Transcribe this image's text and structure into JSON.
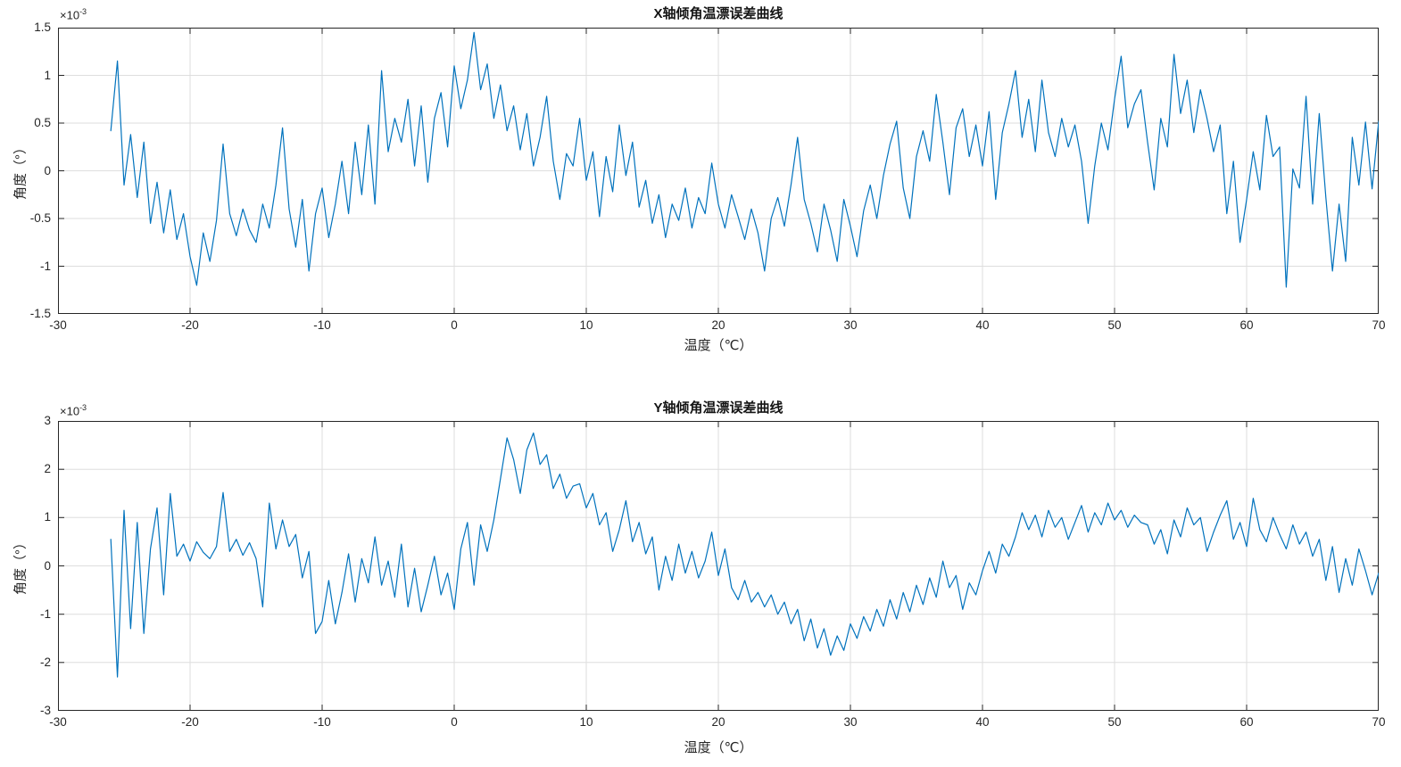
{
  "figure": {
    "background": "#ffffff"
  },
  "colors": {
    "line": "#0072BD",
    "grid": "#dedede",
    "axis_box": "#262626",
    "tick_text": "#262626",
    "title_text": "#141414"
  },
  "chart_data": [
    {
      "type": "line",
      "title": "X轴倾角温漂误差曲线",
      "xlabel": "温度（℃）",
      "ylabel": "角度（°）",
      "y_scale_base": "×10",
      "y_scale_exp": "-3",
      "values_unit": "1e-3 degrees",
      "xlim": [
        -30,
        70
      ],
      "ylim": [
        -1.5,
        1.5
      ],
      "x_ticks": [
        -30,
        -20,
        -10,
        0,
        10,
        20,
        30,
        40,
        50,
        60,
        70
      ],
      "y_ticks": [
        -1.5,
        -1,
        -0.5,
        0,
        0.5,
        1,
        1.5
      ],
      "grid": true,
      "legend": null,
      "x": [
        -26,
        -25.5,
        -25,
        -24.5,
        -24,
        -23.5,
        -23,
        -22.5,
        -22,
        -21.5,
        -21,
        -20.5,
        -20,
        -19.5,
        -19,
        -18.5,
        -18,
        -17.5,
        -17,
        -16.5,
        -16,
        -15.5,
        -15,
        -14.5,
        -14,
        -13.5,
        -13,
        -12.5,
        -12,
        -11.5,
        -11,
        -10.5,
        -10,
        -9.5,
        -9,
        -8.5,
        -8,
        -7.5,
        -7,
        -6.5,
        -6,
        -5.5,
        -5,
        -4.5,
        -4,
        -3.5,
        -3,
        -2.5,
        -2,
        -1.5,
        -1,
        -0.5,
        0,
        0.5,
        1,
        1.5,
        2,
        2.5,
        3,
        3.5,
        4,
        4.5,
        5,
        5.5,
        6,
        6.5,
        7,
        7.5,
        8,
        8.5,
        9,
        9.5,
        10,
        10.5,
        11,
        11.5,
        12,
        12.5,
        13,
        13.5,
        14,
        14.5,
        15,
        15.5,
        16,
        16.5,
        17,
        17.5,
        18,
        18.5,
        19,
        19.5,
        20,
        20.5,
        21,
        21.5,
        22,
        22.5,
        23,
        23.5,
        24,
        24.5,
        25,
        25.5,
        26,
        26.5,
        27,
        27.5,
        28,
        28.5,
        29,
        29.5,
        30,
        30.5,
        31,
        31.5,
        32,
        32.5,
        33,
        33.5,
        34,
        34.5,
        35,
        35.5,
        36,
        36.5,
        37,
        37.5,
        38,
        38.5,
        39,
        39.5,
        40,
        40.5,
        41,
        41.5,
        42,
        42.5,
        43,
        43.5,
        44,
        44.5,
        45,
        45.5,
        46,
        46.5,
        47,
        47.5,
        48,
        48.5,
        49,
        49.5,
        50,
        50.5,
        51,
        51.5,
        52,
        52.5,
        53,
        53.5,
        54,
        54.5,
        55,
        55.5,
        56,
        56.5,
        57,
        57.5,
        58,
        58.5,
        59,
        59.5,
        60,
        60.5,
        61,
        61.5,
        62,
        62.5,
        63,
        63.5,
        64,
        64.5,
        65,
        65.5,
        66,
        66.5,
        67,
        67.5,
        68,
        68.5,
        69,
        69.5,
        70
      ],
      "y": [
        0.42,
        1.15,
        -0.15,
        0.38,
        -0.28,
        0.3,
        -0.55,
        -0.12,
        -0.65,
        -0.2,
        -0.72,
        -0.45,
        -0.9,
        -1.2,
        -0.65,
        -0.95,
        -0.52,
        0.28,
        -0.45,
        -0.68,
        -0.4,
        -0.62,
        -0.75,
        -0.35,
        -0.6,
        -0.15,
        0.45,
        -0.4,
        -0.8,
        -0.3,
        -1.05,
        -0.45,
        -0.18,
        -0.7,
        -0.35,
        0.1,
        -0.45,
        0.3,
        -0.25,
        0.48,
        -0.35,
        1.05,
        0.2,
        0.55,
        0.3,
        0.75,
        0.05,
        0.68,
        -0.12,
        0.55,
        0.82,
        0.25,
        1.1,
        0.65,
        0.95,
        1.45,
        0.85,
        1.12,
        0.55,
        0.9,
        0.42,
        0.68,
        0.22,
        0.6,
        0.05,
        0.35,
        0.78,
        0.1,
        -0.3,
        0.18,
        0.05,
        0.55,
        -0.1,
        0.2,
        -0.48,
        0.15,
        -0.22,
        0.48,
        -0.05,
        0.3,
        -0.38,
        -0.1,
        -0.55,
        -0.25,
        -0.7,
        -0.35,
        -0.52,
        -0.18,
        -0.6,
        -0.28,
        -0.45,
        0.08,
        -0.35,
        -0.6,
        -0.25,
        -0.48,
        -0.72,
        -0.4,
        -0.65,
        -1.05,
        -0.5,
        -0.28,
        -0.58,
        -0.15,
        0.35,
        -0.3,
        -0.55,
        -0.85,
        -0.35,
        -0.62,
        -0.95,
        -0.3,
        -0.58,
        -0.9,
        -0.42,
        -0.15,
        -0.5,
        -0.05,
        0.28,
        0.52,
        -0.18,
        -0.5,
        0.15,
        0.42,
        0.1,
        0.8,
        0.3,
        -0.25,
        0.45,
        0.65,
        0.15,
        0.48,
        0.05,
        0.62,
        -0.3,
        0.4,
        0.7,
        1.05,
        0.35,
        0.75,
        0.2,
        0.95,
        0.4,
        0.15,
        0.55,
        0.25,
        0.48,
        0.1,
        -0.55,
        0.05,
        0.5,
        0.22,
        0.75,
        1.2,
        0.45,
        0.7,
        0.85,
        0.3,
        -0.2,
        0.55,
        0.25,
        1.22,
        0.6,
        0.95,
        0.4,
        0.85,
        0.55,
        0.2,
        0.48,
        -0.45,
        0.1,
        -0.75,
        -0.3,
        0.2,
        -0.2,
        0.58,
        0.15,
        0.25,
        -1.22,
        0.02,
        -0.18,
        0.78,
        -0.35,
        0.6,
        -0.28,
        -1.05,
        -0.35,
        -0.95,
        0.35,
        -0.15,
        0.51,
        -0.19,
        0.52
      ]
    },
    {
      "type": "line",
      "title": "Y轴倾角温漂误差曲线",
      "xlabel": "温度（℃）",
      "ylabel": "角度（°）",
      "y_scale_base": "×10",
      "y_scale_exp": "-3",
      "values_unit": "1e-3 degrees",
      "xlim": [
        -30,
        70
      ],
      "ylim": [
        -3,
        3
      ],
      "x_ticks": [
        -30,
        -20,
        -10,
        0,
        10,
        20,
        30,
        40,
        50,
        60,
        70
      ],
      "y_ticks": [
        -3,
        -2,
        -1,
        0,
        1,
        2,
        3
      ],
      "grid": true,
      "legend": null,
      "x": [
        -26,
        -25.5,
        -25,
        -24.5,
        -24,
        -23.5,
        -23,
        -22.5,
        -22,
        -21.5,
        -21,
        -20.5,
        -20,
        -19.5,
        -19,
        -18.5,
        -18,
        -17.5,
        -17,
        -16.5,
        -16,
        -15.5,
        -15,
        -14.5,
        -14,
        -13.5,
        -13,
        -12.5,
        -12,
        -11.5,
        -11,
        -10.5,
        -10,
        -9.5,
        -9,
        -8.5,
        -8,
        -7.5,
        -7,
        -6.5,
        -6,
        -5.5,
        -5,
        -4.5,
        -4,
        -3.5,
        -3,
        -2.5,
        -2,
        -1.5,
        -1,
        -0.5,
        0,
        0.5,
        1,
        1.5,
        2,
        2.5,
        3,
        3.5,
        4,
        4.5,
        5,
        5.5,
        6,
        6.5,
        7,
        7.5,
        8,
        8.5,
        9,
        9.5,
        10,
        10.5,
        11,
        11.5,
        12,
        12.5,
        13,
        13.5,
        14,
        14.5,
        15,
        15.5,
        16,
        16.5,
        17,
        17.5,
        18,
        18.5,
        19,
        19.5,
        20,
        20.5,
        21,
        21.5,
        22,
        22.5,
        23,
        23.5,
        24,
        24.5,
        25,
        25.5,
        26,
        26.5,
        27,
        27.5,
        28,
        28.5,
        29,
        29.5,
        30,
        30.5,
        31,
        31.5,
        32,
        32.5,
        33,
        33.5,
        34,
        34.5,
        35,
        35.5,
        36,
        36.5,
        37,
        37.5,
        38,
        38.5,
        39,
        39.5,
        40,
        40.5,
        41,
        41.5,
        42,
        42.5,
        43,
        43.5,
        44,
        44.5,
        45,
        45.5,
        46,
        46.5,
        47,
        47.5,
        48,
        48.5,
        49,
        49.5,
        50,
        50.5,
        51,
        51.5,
        52,
        52.5,
        53,
        53.5,
        54,
        54.5,
        55,
        55.5,
        56,
        56.5,
        57,
        57.5,
        58,
        58.5,
        59,
        59.5,
        60,
        60.5,
        61,
        61.5,
        62,
        62.5,
        63,
        63.5,
        64,
        64.5,
        65,
        65.5,
        66,
        66.5,
        67,
        67.5,
        68,
        68.5,
        69,
        69.5,
        70
      ],
      "y": [
        0.55,
        -2.3,
        1.15,
        -1.3,
        0.9,
        -1.4,
        0.35,
        1.2,
        -0.6,
        1.5,
        0.2,
        0.45,
        0.1,
        0.5,
        0.28,
        0.15,
        0.4,
        1.52,
        0.3,
        0.55,
        0.22,
        0.48,
        0.15,
        -0.85,
        1.3,
        0.35,
        0.95,
        0.4,
        0.65,
        -0.25,
        0.3,
        -1.4,
        -1.15,
        -0.3,
        -1.2,
        -0.55,
        0.25,
        -0.75,
        0.15,
        -0.35,
        0.6,
        -0.4,
        0.1,
        -0.65,
        0.45,
        -0.85,
        -0.05,
        -0.95,
        -0.4,
        0.2,
        -0.6,
        -0.15,
        -0.9,
        0.35,
        0.9,
        -0.4,
        0.85,
        0.3,
        0.95,
        1.8,
        2.65,
        2.2,
        1.5,
        2.4,
        2.75,
        2.1,
        2.3,
        1.6,
        1.9,
        1.4,
        1.65,
        1.7,
        1.2,
        1.5,
        0.85,
        1.1,
        0.3,
        0.75,
        1.35,
        0.5,
        0.9,
        0.25,
        0.6,
        -0.5,
        0.2,
        -0.3,
        0.45,
        -0.15,
        0.3,
        -0.25,
        0.1,
        0.7,
        -0.2,
        0.35,
        -0.45,
        -0.7,
        -0.3,
        -0.75,
        -0.55,
        -0.85,
        -0.6,
        -1.0,
        -0.75,
        -1.2,
        -0.9,
        -1.55,
        -1.1,
        -1.7,
        -1.3,
        -1.85,
        -1.45,
        -1.75,
        -1.2,
        -1.5,
        -1.05,
        -1.35,
        -0.9,
        -1.25,
        -0.7,
        -1.1,
        -0.55,
        -0.95,
        -0.4,
        -0.8,
        -0.25,
        -0.65,
        0.1,
        -0.45,
        -0.2,
        -0.9,
        -0.35,
        -0.6,
        -0.1,
        0.3,
        -0.15,
        0.45,
        0.2,
        0.6,
        1.1,
        0.75,
        1.05,
        0.6,
        1.15,
        0.8,
        1.0,
        0.55,
        0.9,
        1.25,
        0.7,
        1.1,
        0.85,
        1.3,
        0.95,
        1.15,
        0.8,
        1.05,
        0.9,
        0.85,
        0.45,
        0.75,
        0.25,
        0.95,
        0.6,
        1.2,
        0.85,
        1.0,
        0.3,
        0.7,
        1.05,
        1.35,
        0.55,
        0.9,
        0.4,
        1.4,
        0.75,
        0.5,
        1.0,
        0.65,
        0.35,
        0.85,
        0.45,
        0.7,
        0.2,
        0.55,
        -0.3,
        0.4,
        -0.55,
        0.15,
        -0.4,
        0.35,
        -0.1,
        -0.6,
        -0.15
      ]
    }
  ]
}
